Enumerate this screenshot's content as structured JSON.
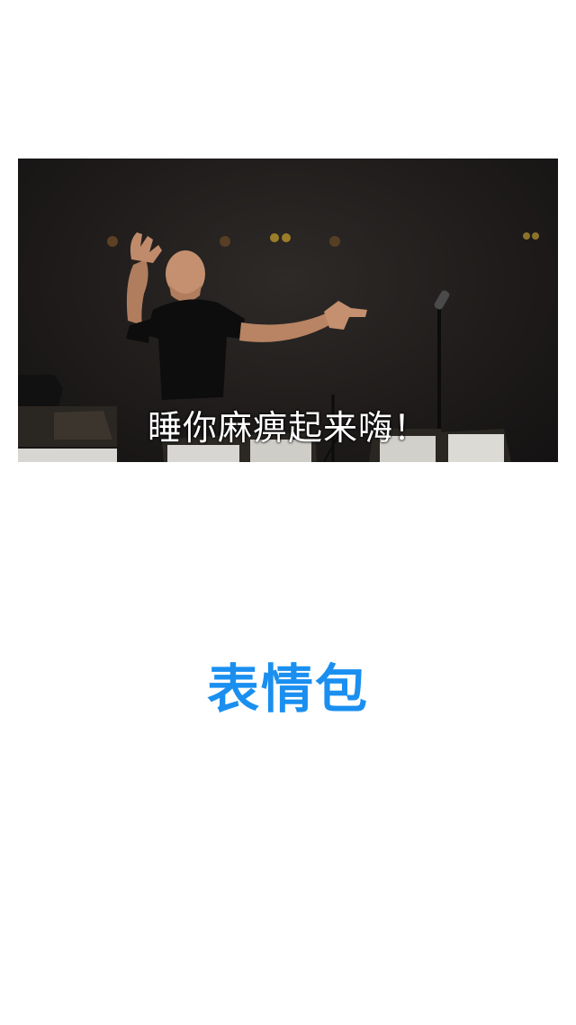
{
  "meme": {
    "caption": "睡你麻痹起来嗨！",
    "image_subject": "conductor-photo"
  },
  "footer_label": "表情包",
  "colors": {
    "accent": "#1a8ff0",
    "background": "#ffffff",
    "caption_text": "#ffffff"
  }
}
